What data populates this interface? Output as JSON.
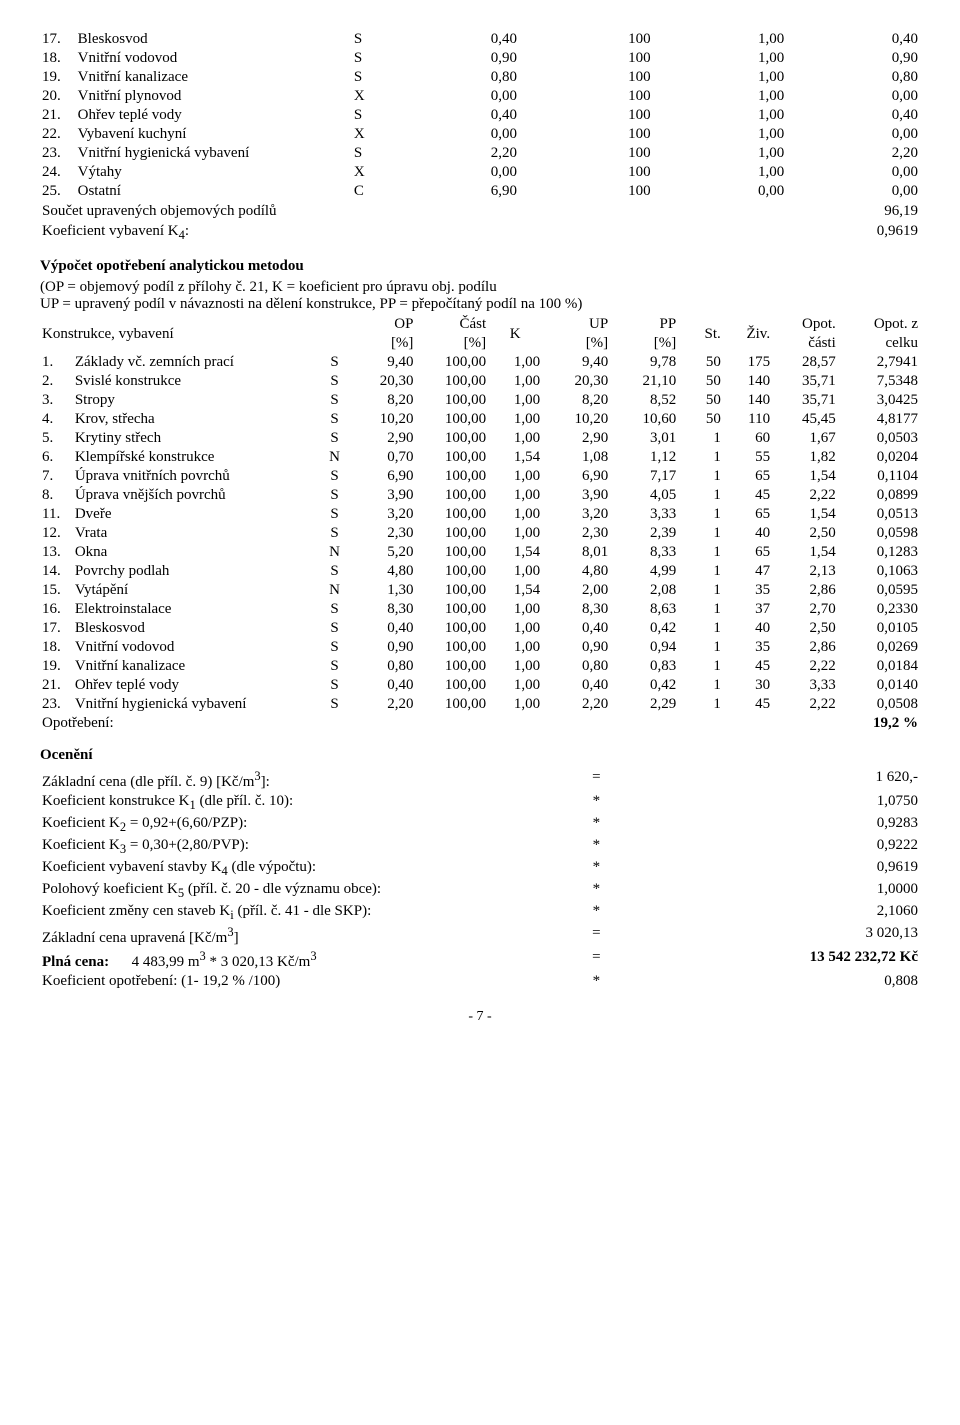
{
  "table1": {
    "rows": [
      {
        "n": "17.",
        "name": "Bleskosvod",
        "c": "S",
        "v1": "0,40",
        "v2": "100",
        "v3": "1,00",
        "v4": "0,40"
      },
      {
        "n": "18.",
        "name": "Vnitřní vodovod",
        "c": "S",
        "v1": "0,90",
        "v2": "100",
        "v3": "1,00",
        "v4": "0,90"
      },
      {
        "n": "19.",
        "name": "Vnitřní kanalizace",
        "c": "S",
        "v1": "0,80",
        "v2": "100",
        "v3": "1,00",
        "v4": "0,80"
      },
      {
        "n": "20.",
        "name": "Vnitřní plynovod",
        "c": "X",
        "v1": "0,00",
        "v2": "100",
        "v3": "1,00",
        "v4": "0,00"
      },
      {
        "n": "21.",
        "name": "Ohřev teplé vody",
        "c": "S",
        "v1": "0,40",
        "v2": "100",
        "v3": "1,00",
        "v4": "0,40"
      },
      {
        "n": "22.",
        "name": "Vybavení kuchyní",
        "c": "X",
        "v1": "0,00",
        "v2": "100",
        "v3": "1,00",
        "v4": "0,00"
      },
      {
        "n": "23.",
        "name": "Vnitřní hygienická vybavení",
        "c": "S",
        "v1": "2,20",
        "v2": "100",
        "v3": "1,00",
        "v4": "2,20"
      },
      {
        "n": "24.",
        "name": "Výtahy",
        "c": "X",
        "v1": "0,00",
        "v2": "100",
        "v3": "1,00",
        "v4": "0,00"
      },
      {
        "n": "25.",
        "name": "Ostatní",
        "c": "C",
        "v1": "6,90",
        "v2": "100",
        "v3": "0,00",
        "v4": "0,00"
      }
    ],
    "sum1_label": "Součet upravených objemových podílů",
    "sum1_val": "96,19",
    "sum2_label": "Koeficient vybavení K",
    "sum2_sub": "4",
    "sum2_suffix": ":",
    "sum2_val": "0,9619"
  },
  "methodHeading": "Výpočet opotřebení analytickou metodou",
  "methodLine1": "(OP = objemový podíl z přílohy č. 21, K = koeficient pro úpravu obj. podílu",
  "methodLine2": "UP = upravený podíl v návaznosti na dělení konstrukce, PP = přepočítaný podíl na 100 %)",
  "table2": {
    "headLabel": "Konstrukce, vybavení",
    "h1a": "OP",
    "h1b": "[%]",
    "h2a": "Část",
    "h2b": "[%]",
    "h3": "K",
    "h4a": "UP",
    "h4b": "[%]",
    "h5a": "PP",
    "h5b": "[%]",
    "h6": "St.",
    "h7": "Živ.",
    "h8a": "Opot.",
    "h8b": "části",
    "h9a": "Opot. z",
    "h9b": "celku",
    "rows": [
      {
        "n": "1.",
        "name": "Základy vč. zemních prací",
        "c": "S",
        "op": "9,40",
        "cast": "100,00",
        "k": "1,00",
        "up": "9,40",
        "pp": "9,78",
        "st": "50",
        "ziv": "175",
        "opc": "28,57",
        "opz": "2,7941"
      },
      {
        "n": "2.",
        "name": "Svislé konstrukce",
        "c": "S",
        "op": "20,30",
        "cast": "100,00",
        "k": "1,00",
        "up": "20,30",
        "pp": "21,10",
        "st": "50",
        "ziv": "140",
        "opc": "35,71",
        "opz": "7,5348"
      },
      {
        "n": "3.",
        "name": "Stropy",
        "c": "S",
        "op": "8,20",
        "cast": "100,00",
        "k": "1,00",
        "up": "8,20",
        "pp": "8,52",
        "st": "50",
        "ziv": "140",
        "opc": "35,71",
        "opz": "3,0425"
      },
      {
        "n": "4.",
        "name": "Krov, střecha",
        "c": "S",
        "op": "10,20",
        "cast": "100,00",
        "k": "1,00",
        "up": "10,20",
        "pp": "10,60",
        "st": "50",
        "ziv": "110",
        "opc": "45,45",
        "opz": "4,8177"
      },
      {
        "n": "5.",
        "name": "Krytiny střech",
        "c": "S",
        "op": "2,90",
        "cast": "100,00",
        "k": "1,00",
        "up": "2,90",
        "pp": "3,01",
        "st": "1",
        "ziv": "60",
        "opc": "1,67",
        "opz": "0,0503"
      },
      {
        "n": "6.",
        "name": "Klempířské konstrukce",
        "c": "N",
        "op": "0,70",
        "cast": "100,00",
        "k": "1,54",
        "up": "1,08",
        "pp": "1,12",
        "st": "1",
        "ziv": "55",
        "opc": "1,82",
        "opz": "0,0204"
      },
      {
        "n": "7.",
        "name": "Úprava vnitřních povrchů",
        "c": "S",
        "op": "6,90",
        "cast": "100,00",
        "k": "1,00",
        "up": "6,90",
        "pp": "7,17",
        "st": "1",
        "ziv": "65",
        "opc": "1,54",
        "opz": "0,1104"
      },
      {
        "n": "8.",
        "name": "Úprava vnějších povrchů",
        "c": "S",
        "op": "3,90",
        "cast": "100,00",
        "k": "1,00",
        "up": "3,90",
        "pp": "4,05",
        "st": "1",
        "ziv": "45",
        "opc": "2,22",
        "opz": "0,0899"
      },
      {
        "n": "11.",
        "name": "Dveře",
        "c": "S",
        "op": "3,20",
        "cast": "100,00",
        "k": "1,00",
        "up": "3,20",
        "pp": "3,33",
        "st": "1",
        "ziv": "65",
        "opc": "1,54",
        "opz": "0,0513"
      },
      {
        "n": "12.",
        "name": "Vrata",
        "c": "S",
        "op": "2,30",
        "cast": "100,00",
        "k": "1,00",
        "up": "2,30",
        "pp": "2,39",
        "st": "1",
        "ziv": "40",
        "opc": "2,50",
        "opz": "0,0598"
      },
      {
        "n": "13.",
        "name": "Okna",
        "c": "N",
        "op": "5,20",
        "cast": "100,00",
        "k": "1,54",
        "up": "8,01",
        "pp": "8,33",
        "st": "1",
        "ziv": "65",
        "opc": "1,54",
        "opz": "0,1283"
      },
      {
        "n": "14.",
        "name": "Povrchy podlah",
        "c": "S",
        "op": "4,80",
        "cast": "100,00",
        "k": "1,00",
        "up": "4,80",
        "pp": "4,99",
        "st": "1",
        "ziv": "47",
        "opc": "2,13",
        "opz": "0,1063"
      },
      {
        "n": "15.",
        "name": "Vytápění",
        "c": "N",
        "op": "1,30",
        "cast": "100,00",
        "k": "1,54",
        "up": "2,00",
        "pp": "2,08",
        "st": "1",
        "ziv": "35",
        "opc": "2,86",
        "opz": "0,0595"
      },
      {
        "n": "16.",
        "name": "Elektroinstalace",
        "c": "S",
        "op": "8,30",
        "cast": "100,00",
        "k": "1,00",
        "up": "8,30",
        "pp": "8,63",
        "st": "1",
        "ziv": "37",
        "opc": "2,70",
        "opz": "0,2330"
      },
      {
        "n": "17.",
        "name": "Bleskosvod",
        "c": "S",
        "op": "0,40",
        "cast": "100,00",
        "k": "1,00",
        "up": "0,40",
        "pp": "0,42",
        "st": "1",
        "ziv": "40",
        "opc": "2,50",
        "opz": "0,0105"
      },
      {
        "n": "18.",
        "name": "Vnitřní vodovod",
        "c": "S",
        "op": "0,90",
        "cast": "100,00",
        "k": "1,00",
        "up": "0,90",
        "pp": "0,94",
        "st": "1",
        "ziv": "35",
        "opc": "2,86",
        "opz": "0,0269"
      },
      {
        "n": "19.",
        "name": "Vnitřní kanalizace",
        "c": "S",
        "op": "0,80",
        "cast": "100,00",
        "k": "1,00",
        "up": "0,80",
        "pp": "0,83",
        "st": "1",
        "ziv": "45",
        "opc": "2,22",
        "opz": "0,0184"
      },
      {
        "n": "21.",
        "name": "Ohřev teplé vody",
        "c": "S",
        "op": "0,40",
        "cast": "100,00",
        "k": "1,00",
        "up": "0,40",
        "pp": "0,42",
        "st": "1",
        "ziv": "30",
        "opc": "3,33",
        "opz": "0,0140"
      },
      {
        "n": "23.",
        "name": "Vnitřní hygienická vybavení",
        "c": "S",
        "op": "2,20",
        "cast": "100,00",
        "k": "1,00",
        "up": "2,20",
        "pp": "2,29",
        "st": "1",
        "ziv": "45",
        "opc": "2,22",
        "opz": "0,0508"
      }
    ],
    "opLabel": "Opotřebení:",
    "opVal": "19,2 %"
  },
  "oceneniHeading": "Ocenění",
  "calc": [
    {
      "l": "Základní cena (dle příl. č. 9) [Kč/m",
      "sup": "3",
      "r": "]:",
      "op": "=",
      "v": "1 620,-"
    },
    {
      "l": "Koeficient konstrukce K",
      "sub": "1",
      "r": " (dle příl. č. 10):",
      "op": "*",
      "v": "1,0750"
    },
    {
      "l": "Koeficient K",
      "sub": "2",
      "r": " = 0,92+(6,60/PZP):",
      "op": "*",
      "v": "0,9283"
    },
    {
      "l": "Koeficient K",
      "sub": "3",
      "r": " = 0,30+(2,80/PVP):",
      "op": "*",
      "v": "0,9222"
    },
    {
      "l": "Koeficient vybavení stavby K",
      "sub": "4",
      "r": " (dle výpočtu):",
      "op": "*",
      "v": "0,9619"
    },
    {
      "l": "Polohový koeficient K",
      "sub": "5",
      "r": " (příl. č. 20 - dle významu obce):",
      "op": "*",
      "v": "1,0000"
    },
    {
      "l": "Koeficient změny cen staveb K",
      "sub": "i",
      "r": " (příl. č. 41 - dle SKP):",
      "op": "*",
      "v": "2,1060"
    },
    {
      "l": "Základní cena upravená [Kč/m",
      "sup": "3",
      "r": "]",
      "op": "=",
      "v": "3 020,13"
    }
  ],
  "plnaCenaLabel": "Plná cena:",
  "plnaCenaExpr": "4 483,99 m",
  "plnaCenaSup": "3",
  "plnaCenaExpr2": " * 3 020,13 Kč/m",
  "plnaCenaSup2": "3",
  "plnaCenaOp": "=",
  "plnaCenaVal": "13 542 232,72 Kč",
  "koefOpLabel": "Koeficient opotřebení: (1- 19,2 % /100)",
  "koefOpOp": "*",
  "koefOpVal": "0,808",
  "pageNum": "- 7 -"
}
